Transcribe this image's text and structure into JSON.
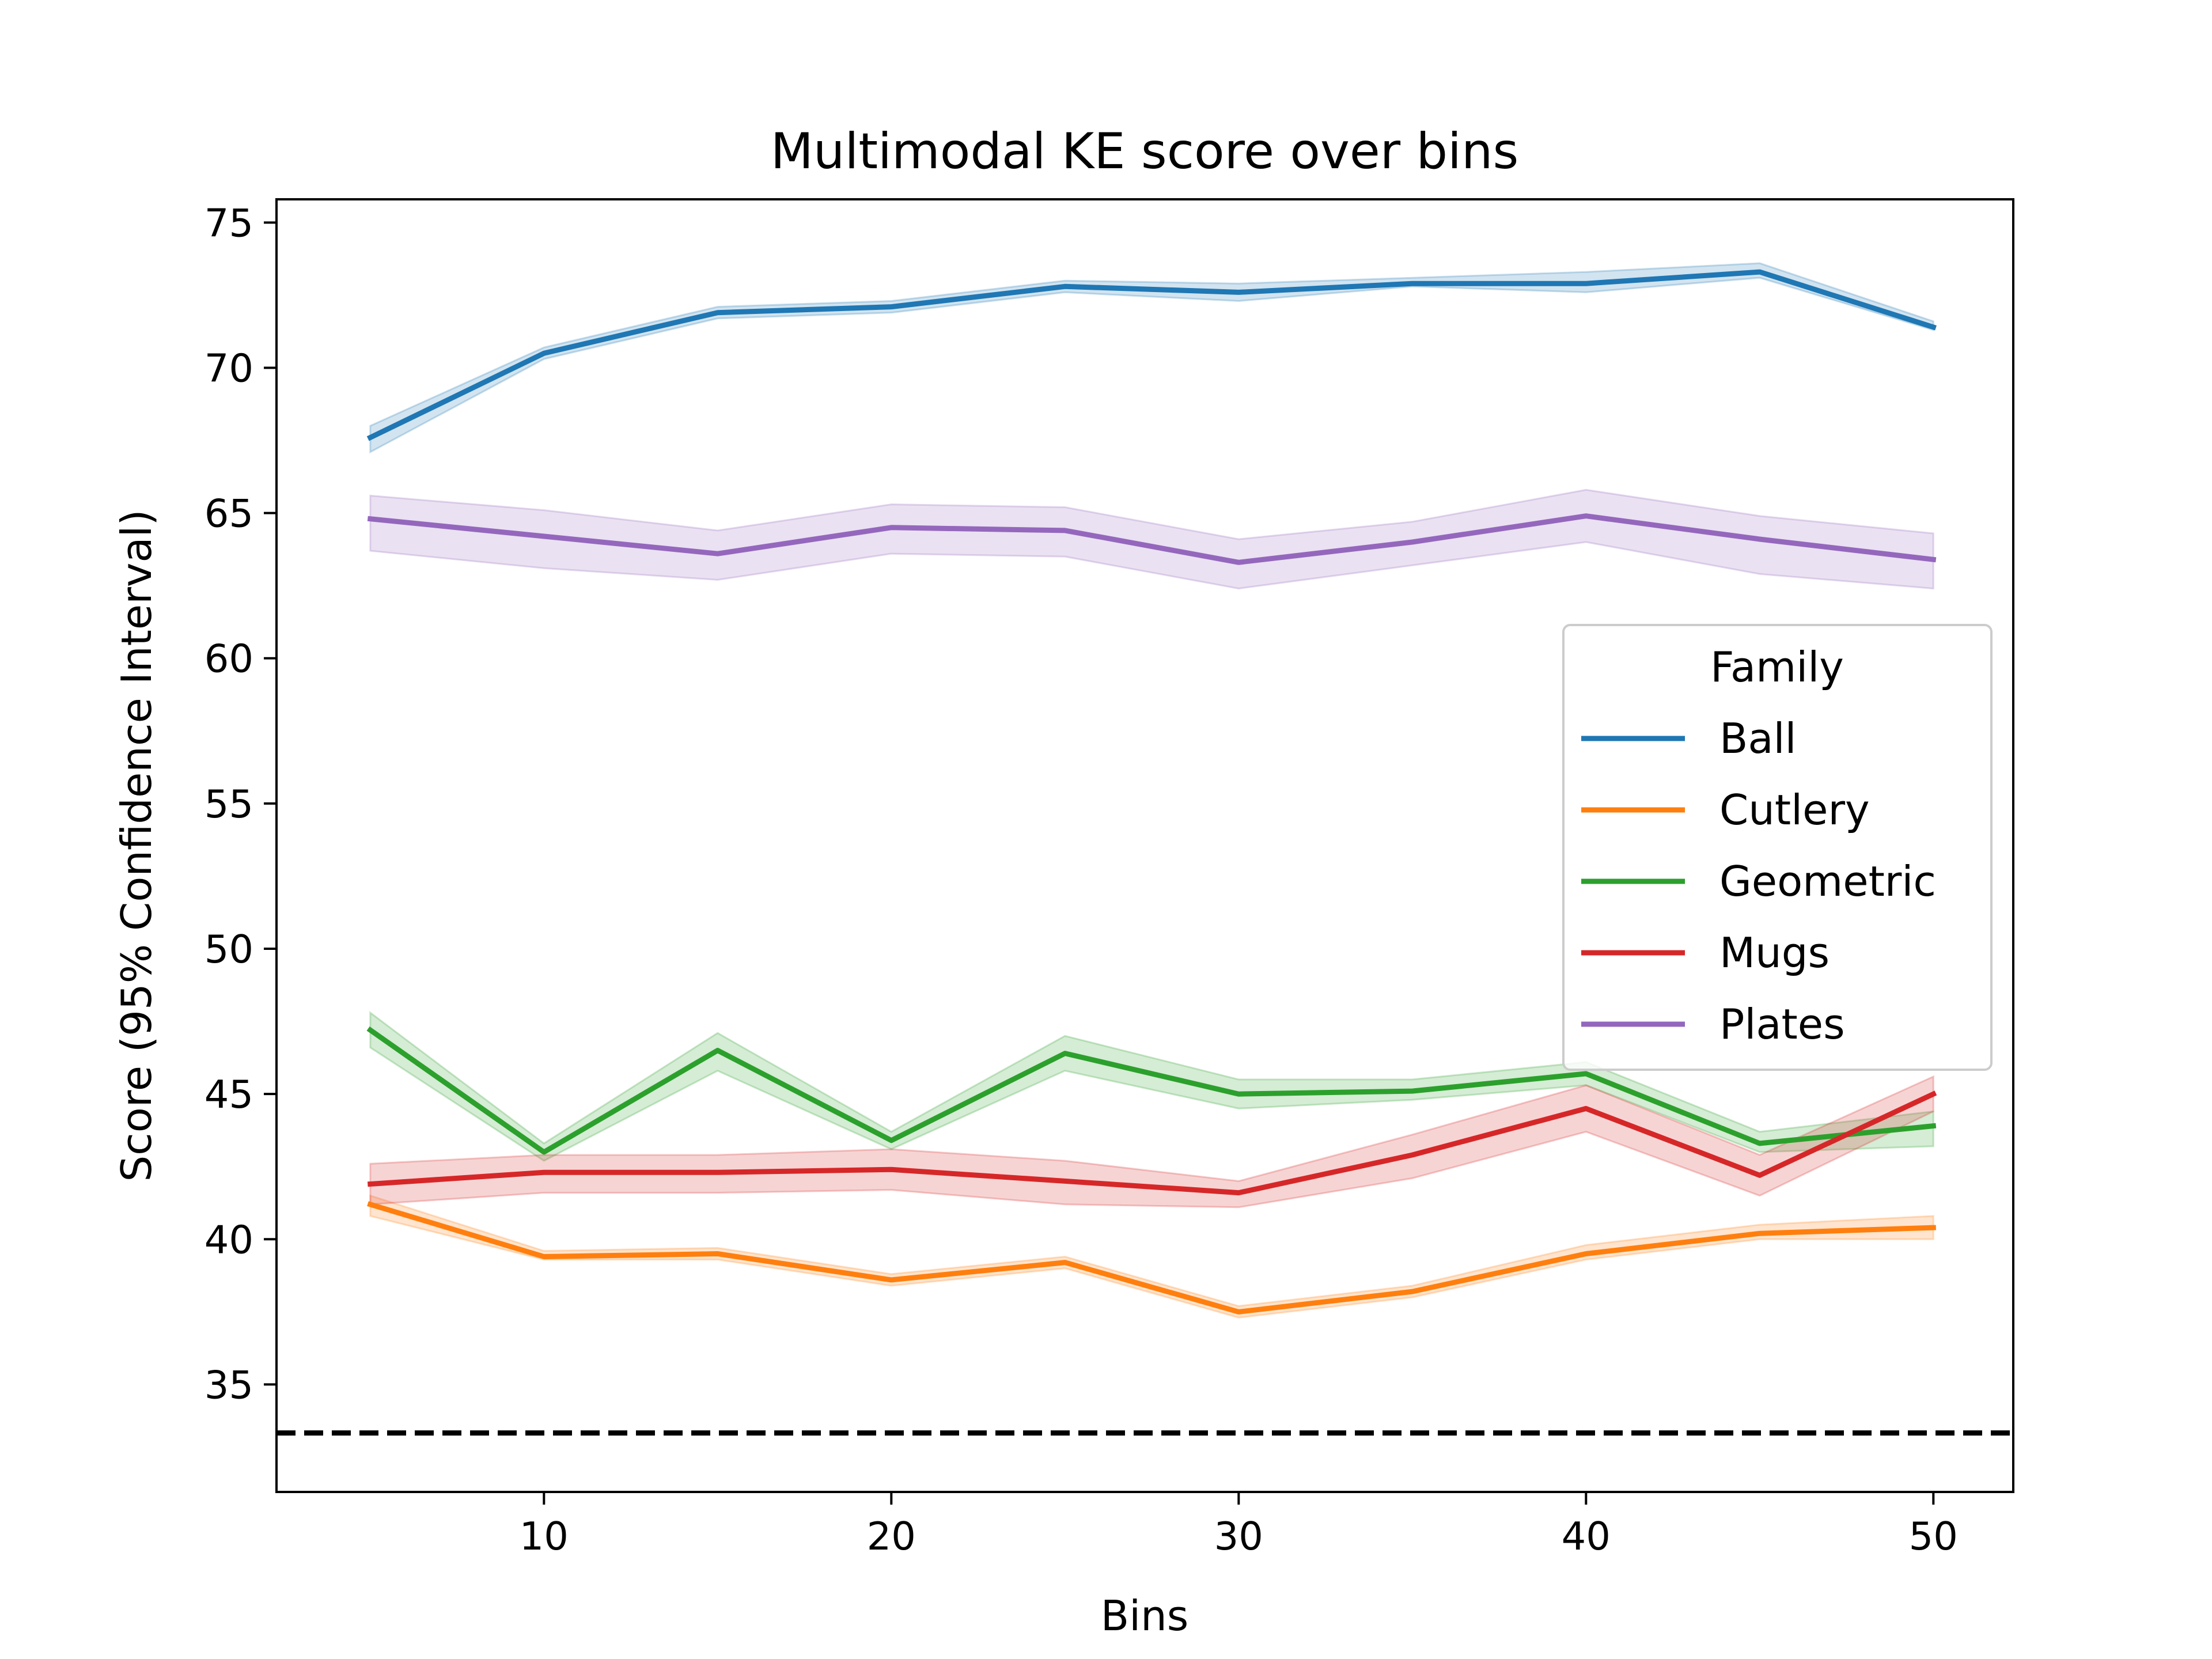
{
  "chart_data": {
    "type": "line",
    "title": "Multimodal KE score over bins",
    "xlabel": "Bins",
    "ylabel": "Score (95% Confidence Interval)",
    "xlim": [
      2.3,
      52.3
    ],
    "ylim": [
      31.3,
      75.8
    ],
    "xticks": [
      10,
      20,
      30,
      40,
      50
    ],
    "yticks": [
      35,
      40,
      45,
      50,
      55,
      60,
      65,
      70,
      75
    ],
    "grid": false,
    "x": [
      5,
      10,
      15,
      20,
      25,
      30,
      35,
      40,
      45,
      50
    ],
    "legend": {
      "title": "Family",
      "placement": "center-right"
    },
    "reference_line": {
      "y": 33.33,
      "style": "dashed",
      "color": "#000000"
    },
    "series": [
      {
        "name": "Ball",
        "color": "#1f77b4",
        "values": [
          67.6,
          70.5,
          71.9,
          72.1,
          72.8,
          72.6,
          72.9,
          72.9,
          73.3,
          71.4
        ],
        "lower": [
          67.1,
          70.3,
          71.7,
          71.9,
          72.6,
          72.3,
          72.8,
          72.6,
          73.1,
          71.3
        ],
        "upper": [
          68.0,
          70.7,
          72.1,
          72.3,
          73.0,
          72.9,
          73.1,
          73.3,
          73.6,
          71.6
        ]
      },
      {
        "name": "Cutlery",
        "color": "#ff7f0e",
        "values": [
          41.2,
          39.4,
          39.5,
          38.6,
          39.2,
          37.5,
          38.2,
          39.5,
          40.2,
          40.4
        ],
        "lower": [
          40.8,
          39.3,
          39.3,
          38.4,
          39.0,
          37.3,
          38.0,
          39.3,
          40.0,
          40.0
        ],
        "upper": [
          41.5,
          39.6,
          39.7,
          38.8,
          39.4,
          37.7,
          38.4,
          39.8,
          40.5,
          40.8
        ]
      },
      {
        "name": "Geometric",
        "color": "#2ca02c",
        "values": [
          47.2,
          43.0,
          46.5,
          43.4,
          46.4,
          45.0,
          45.1,
          45.7,
          43.3,
          43.9
        ],
        "lower": [
          46.6,
          42.7,
          45.8,
          43.1,
          45.8,
          44.5,
          44.8,
          45.3,
          43.0,
          43.2
        ],
        "upper": [
          47.8,
          43.3,
          47.1,
          43.7,
          47.0,
          45.5,
          45.5,
          46.1,
          43.7,
          44.4
        ]
      },
      {
        "name": "Mugs",
        "color": "#d62728",
        "values": [
          41.9,
          42.3,
          42.3,
          42.4,
          42.0,
          41.6,
          42.9,
          44.5,
          42.2,
          45.0
        ],
        "lower": [
          41.2,
          41.6,
          41.6,
          41.7,
          41.2,
          41.1,
          42.1,
          43.7,
          41.5,
          44.4
        ],
        "upper": [
          42.6,
          42.9,
          42.9,
          43.1,
          42.7,
          42.0,
          43.6,
          45.3,
          42.9,
          45.6
        ]
      },
      {
        "name": "Plates",
        "color": "#9467bd",
        "values": [
          64.8,
          64.2,
          63.6,
          64.5,
          64.4,
          63.3,
          64.0,
          64.9,
          64.1,
          63.4
        ],
        "lower": [
          63.7,
          63.1,
          62.7,
          63.6,
          63.5,
          62.4,
          63.2,
          64.0,
          62.9,
          62.4
        ],
        "upper": [
          65.6,
          65.1,
          64.4,
          65.3,
          65.2,
          64.1,
          64.7,
          65.8,
          64.9,
          64.3
        ]
      }
    ]
  }
}
